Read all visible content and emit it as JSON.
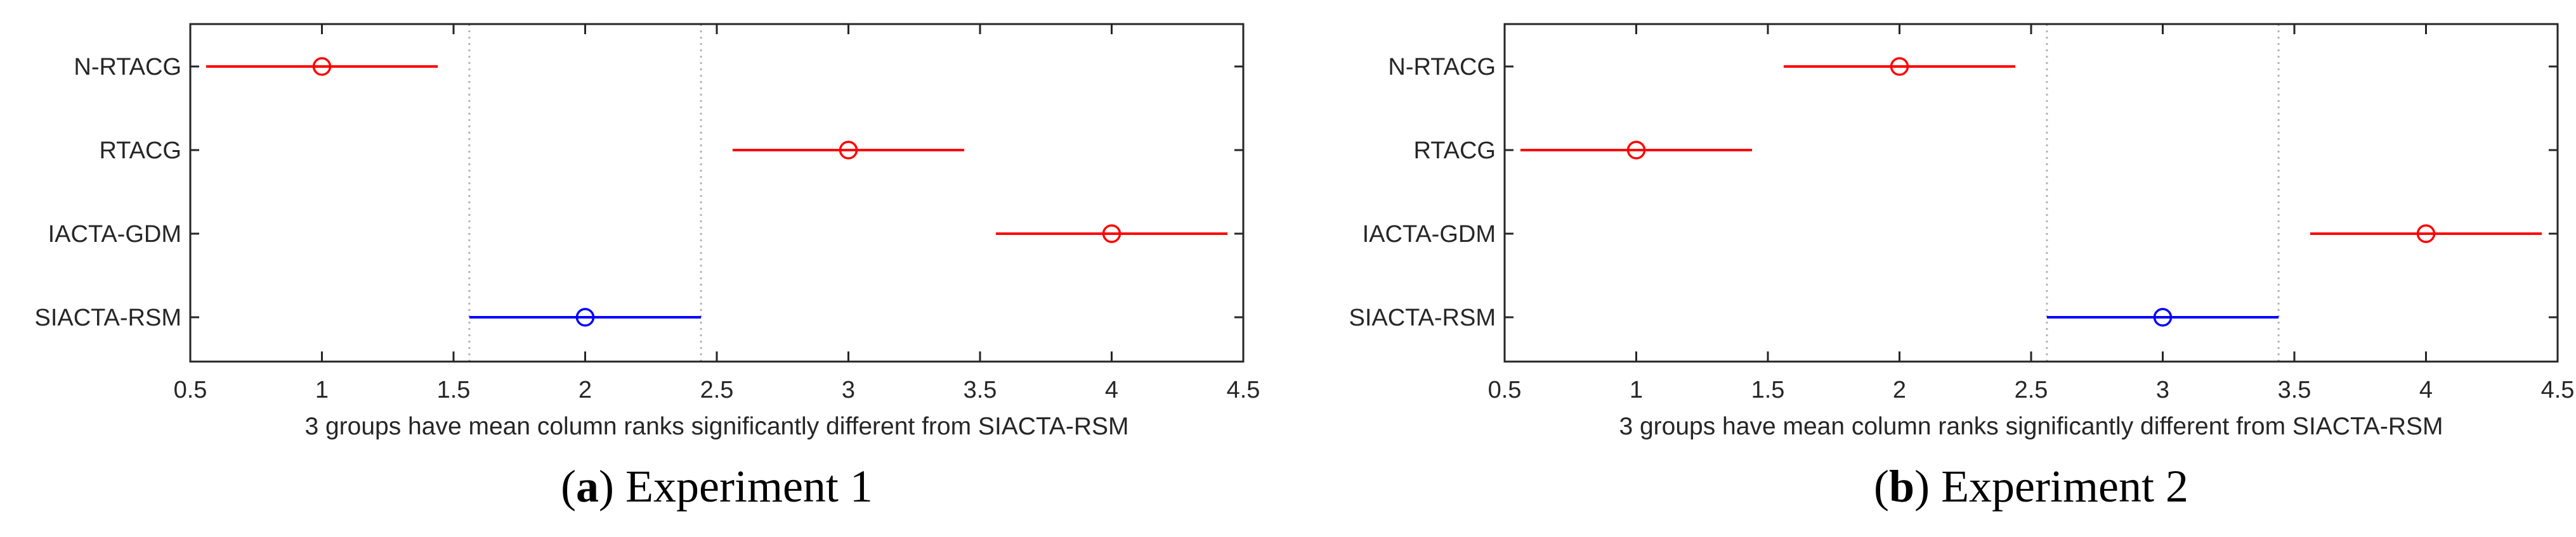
{
  "chart_data": [
    {
      "type": "scatter",
      "subtype": "multiple-comparison-interval",
      "caption": {
        "letter": "a",
        "title": "Experiment 1"
      },
      "xlabel": "3 groups have mean column ranks significantly different from SIACTA-RSM",
      "xlim": [
        0.5,
        4.5
      ],
      "xticks": [
        "0.5",
        "1",
        "1.5",
        "2",
        "2.5",
        "3",
        "3.5",
        "4",
        "4.5"
      ],
      "reference_lines": [
        1.56,
        2.44
      ],
      "groups": [
        {
          "name": "N-RTACG",
          "mean": 1,
          "low": 0.56,
          "high": 1.44,
          "color": "#ff0000"
        },
        {
          "name": "RTACG",
          "mean": 3,
          "low": 2.56,
          "high": 3.44,
          "color": "#ff0000"
        },
        {
          "name": "IACTA-GDM",
          "mean": 4,
          "low": 3.56,
          "high": 4.44,
          "color": "#ff0000"
        },
        {
          "name": "SIACTA-RSM",
          "mean": 2,
          "low": 1.56,
          "high": 2.44,
          "color": "#0000ff"
        }
      ]
    },
    {
      "type": "scatter",
      "subtype": "multiple-comparison-interval",
      "caption": {
        "letter": "b",
        "title": "Experiment 2"
      },
      "xlabel": "3 groups have mean column ranks significantly different from SIACTA-RSM",
      "xlim": [
        0.5,
        4.5
      ],
      "xticks": [
        "0.5",
        "1",
        "1.5",
        "2",
        "2.5",
        "3",
        "3.5",
        "4",
        "4.5"
      ],
      "reference_lines": [
        2.56,
        3.44
      ],
      "groups": [
        {
          "name": "N-RTACG",
          "mean": 2,
          "low": 1.56,
          "high": 2.44,
          "color": "#ff0000"
        },
        {
          "name": "RTACG",
          "mean": 1,
          "low": 0.56,
          "high": 1.44,
          "color": "#ff0000"
        },
        {
          "name": "IACTA-GDM",
          "mean": 4,
          "low": 3.56,
          "high": 4.44,
          "color": "#ff0000"
        },
        {
          "name": "SIACTA-RSM",
          "mean": 3,
          "low": 2.56,
          "high": 3.44,
          "color": "#0000ff"
        }
      ]
    }
  ]
}
